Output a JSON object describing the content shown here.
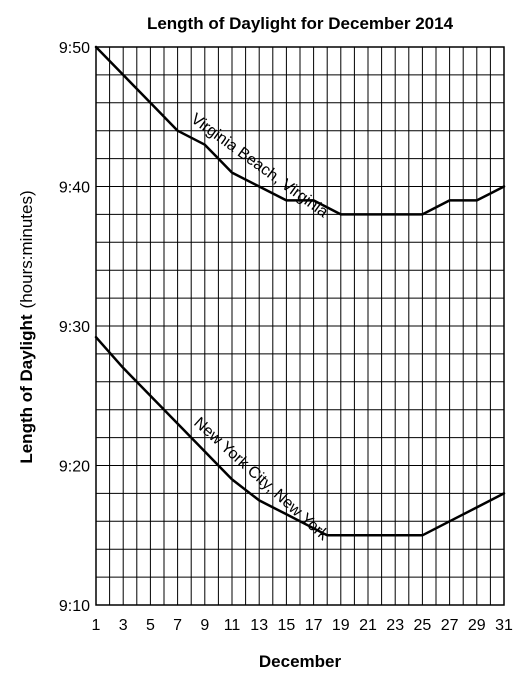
{
  "chart_data": {
    "type": "line",
    "title": "Length of Daylight for December 2014",
    "xlabel": "December",
    "ylabel": "Length of Daylight",
    "ylabel_unit": "(hours:minutes)",
    "x_ticks": [
      "1",
      "3",
      "5",
      "7",
      "9",
      "11",
      "13",
      "15",
      "17",
      "19",
      "21",
      "23",
      "25",
      "27",
      "29",
      "31"
    ],
    "y_ticks": [
      {
        "value": 550,
        "label": "9:10"
      },
      {
        "value": 560,
        "label": "9:20"
      },
      {
        "value": 570,
        "label": "9:30"
      },
      {
        "value": 580,
        "label": "9:40"
      },
      {
        "value": 590,
        "label": "9:50"
      }
    ],
    "xlim": [
      1,
      31
    ],
    "ylim": [
      550,
      590
    ],
    "y_unit_note": "values in minutes of daylight (9:50 = 590)",
    "grid": true,
    "series": [
      {
        "name": "Virginia Beach, Virginia",
        "x": [
          1,
          3,
          5,
          7,
          8,
          9,
          10,
          11,
          13,
          15,
          17,
          19,
          21,
          23,
          24,
          25,
          26,
          27,
          28,
          29,
          30,
          31
        ],
        "values": [
          590,
          588,
          586,
          584,
          583.5,
          583,
          582,
          581,
          580,
          579,
          579,
          578,
          578,
          578,
          578,
          578,
          578.5,
          579,
          579,
          579,
          579.5,
          580
        ]
      },
      {
        "name": "New York City, New York",
        "x": [
          1,
          3,
          5,
          7,
          9,
          10,
          11,
          13,
          15,
          17,
          18,
          19,
          21,
          23,
          24,
          25,
          26,
          27,
          29,
          31
        ],
        "values": [
          569.2,
          567,
          565,
          563,
          561,
          560,
          559,
          557.5,
          556.5,
          555.5,
          555,
          555,
          555,
          555,
          555,
          555,
          555.5,
          556,
          557,
          558
        ]
      }
    ]
  }
}
